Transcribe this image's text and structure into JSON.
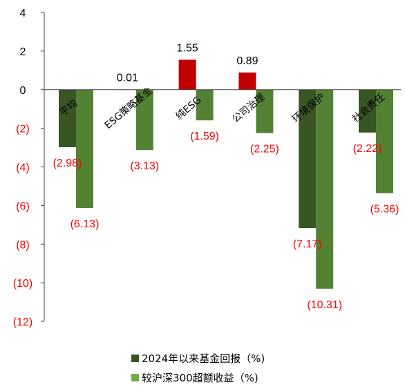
{
  "chart_data": {
    "type": "bar",
    "categories": [
      "平均",
      "ESG策略基金",
      "纯ESG",
      "公司治理",
      "环境保护",
      "社会责任"
    ],
    "series": [
      {
        "name": "2024年以来基金回报（%)",
        "values": [
          -2.98,
          0.01,
          1.55,
          0.89,
          -7.17,
          -2.22
        ],
        "labels": [
          "(2.98)",
          "0.01",
          "1.55",
          "0.89",
          "(7.17)",
          "(2.22)"
        ],
        "color": "#375623"
      },
      {
        "name": "较沪深300超额收益（%)",
        "values": [
          -6.13,
          -3.13,
          -1.59,
          -2.25,
          -10.31,
          -5.36
        ],
        "labels": [
          "(6.13)",
          "(3.13)",
          "(1.59)",
          "(2.25)",
          "(10.31)",
          "(5.36)"
        ],
        "color": "#548235"
      }
    ],
    "positive_color": "#c00000",
    "negative_label_color": "#ff0000",
    "ylim": [
      -12,
      4
    ],
    "yticks": [
      4,
      2,
      0,
      -2,
      -4,
      -6,
      -8,
      -10,
      -12
    ],
    "ytick_labels": [
      "4",
      "2",
      "0",
      "(2)",
      "(4)",
      "(6)",
      "(8)",
      "(10)",
      "(12)"
    ],
    "legend_position": "bottom",
    "grid": false
  },
  "legend": {
    "series1_label": "2024年以来基金回报（%)",
    "series2_label": "较沪深300超额收益（%)"
  }
}
